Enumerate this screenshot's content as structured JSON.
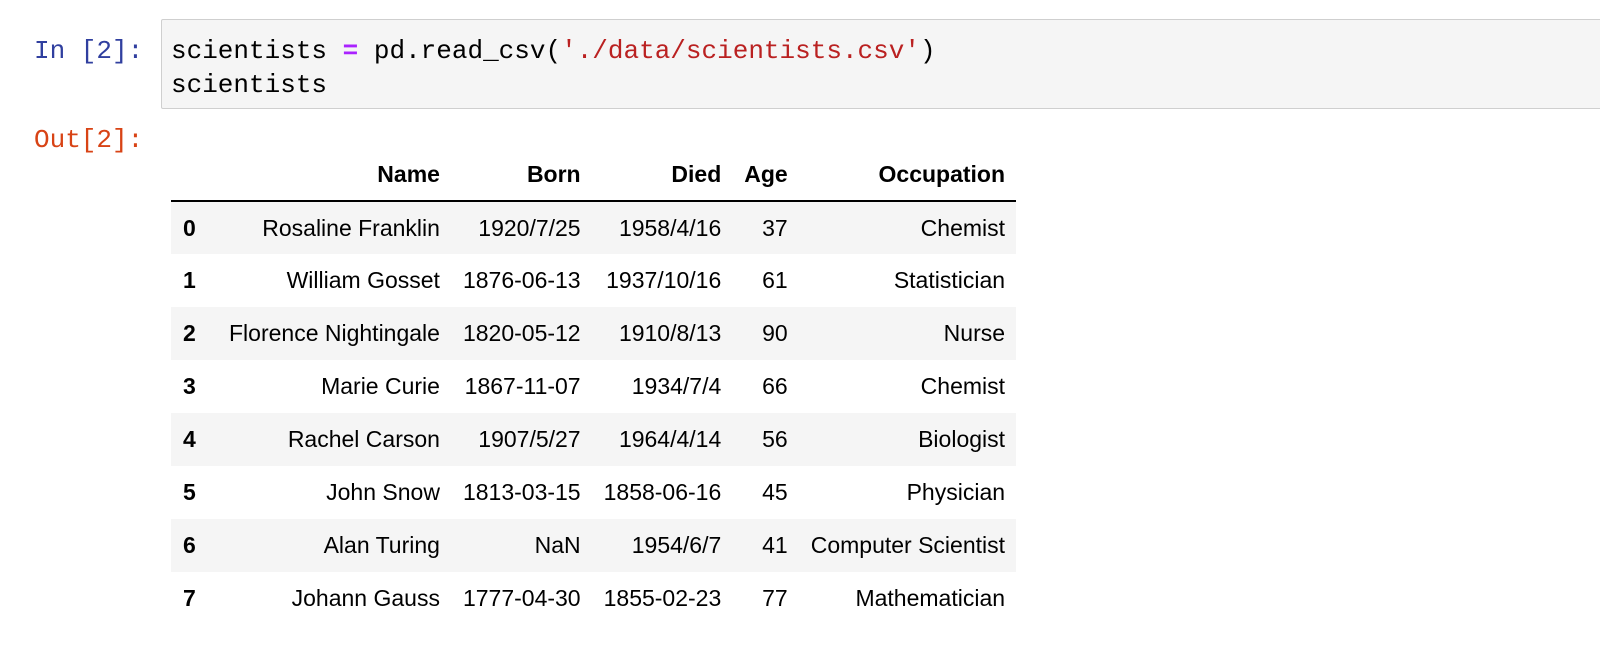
{
  "input_cell": {
    "prompt": "In [2]:",
    "code": {
      "var": "scientists",
      "op": "=",
      "call": "pd.read_csv(",
      "arg": "'./data/scientists.csv'",
      "close": ")",
      "line2": "scientists"
    }
  },
  "output_cell": {
    "prompt": "Out[2]:"
  },
  "dataframe": {
    "columns": [
      "",
      "Name",
      "Born",
      "Died",
      "Age",
      "Occupation"
    ],
    "rows": [
      [
        "0",
        "Rosaline Franklin",
        "1920/7/25",
        "1958/4/16",
        "37",
        "Chemist"
      ],
      [
        "1",
        "William Gosset",
        "1876-06-13",
        "1937/10/16",
        "61",
        "Statistician"
      ],
      [
        "2",
        "Florence Nightingale",
        "1820-05-12",
        "1910/8/13",
        "90",
        "Nurse"
      ],
      [
        "3",
        "Marie Curie",
        "1867-11-07",
        "1934/7/4",
        "66",
        "Chemist"
      ],
      [
        "4",
        "Rachel Carson",
        "1907/5/27",
        "1964/4/14",
        "56",
        "Biologist"
      ],
      [
        "5",
        "John Snow",
        "1813-03-15",
        "1858-06-16",
        "45",
        "Physician"
      ],
      [
        "6",
        "Alan Turing",
        "NaN",
        "1954/6/7",
        "41",
        "Computer Scientist"
      ],
      [
        "7",
        "Johann Gauss",
        "1777-04-30",
        "1855-02-23",
        "77",
        "Mathematician"
      ]
    ]
  },
  "colors": {
    "in_prompt": "#303f9f",
    "out_prompt": "#d84315",
    "string_literal": "#ba2121",
    "operator": "#aa22ff",
    "cell_background": "#f5f5f5",
    "cell_border": "#cfcfcf"
  }
}
